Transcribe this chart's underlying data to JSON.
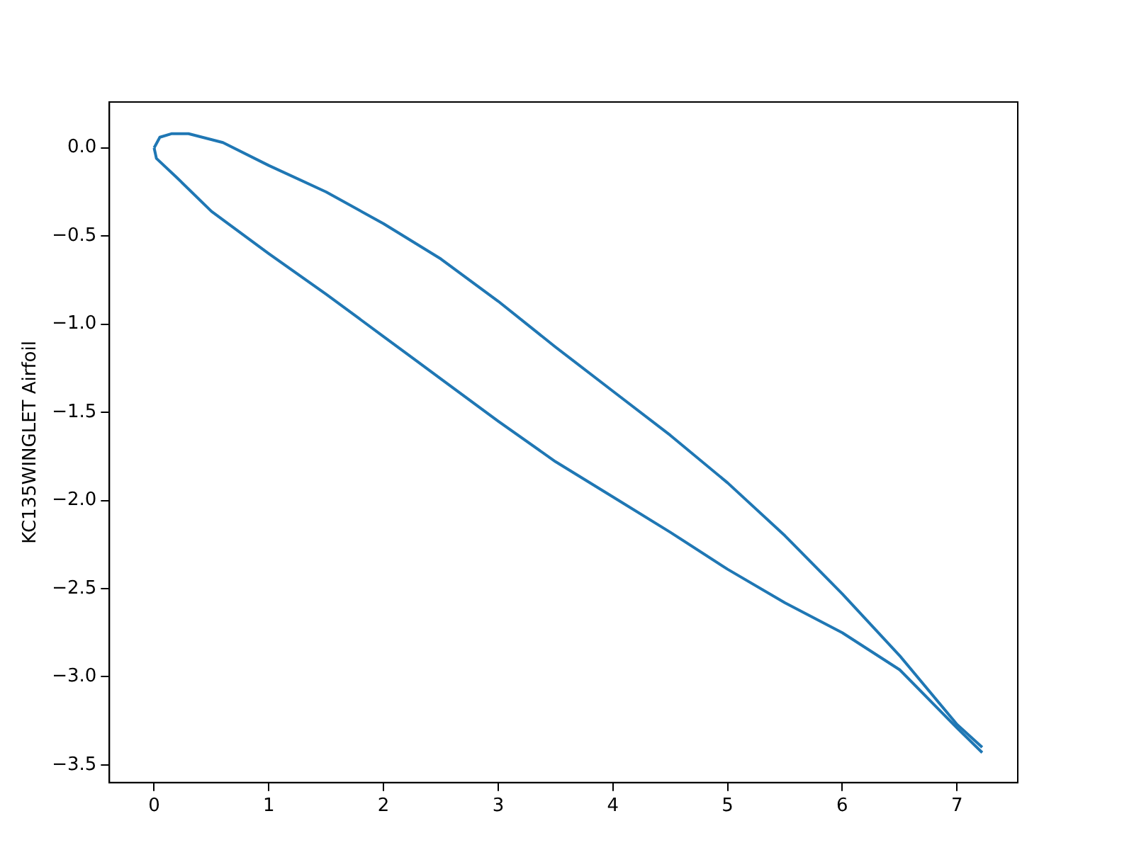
{
  "chart_data": {
    "type": "line",
    "ylabel": "KC135WINGLET Airfoil",
    "series": [
      {
        "color": "#1f77b4",
        "x": [
          0,
          0.05,
          0.15,
          0.3,
          0.6,
          1,
          1.5,
          2,
          2.5,
          3,
          3.5,
          4,
          4.5,
          5,
          5.5,
          6,
          6.5,
          7,
          7.22
        ],
        "values": [
          0,
          0.06,
          0.08,
          0.08,
          0.03,
          -0.1,
          -0.25,
          -0.43,
          -0.63,
          -0.87,
          -1.13,
          -1.38,
          -1.63,
          -1.9,
          -2.2,
          -2.53,
          -2.88,
          -3.27,
          -3.4
        ]
      },
      {
        "color": "#1f77b4",
        "x": [
          0,
          0.02,
          0.2,
          0.5,
          1,
          1.5,
          2,
          2.5,
          3,
          3.5,
          4,
          4.5,
          5,
          5.5,
          6,
          6.5,
          7,
          7.22
        ],
        "values": [
          0,
          -0.06,
          -0.17,
          -0.36,
          -0.6,
          -0.83,
          -1.07,
          -1.31,
          -1.55,
          -1.78,
          -1.98,
          -2.18,
          -2.39,
          -2.58,
          -2.75,
          -2.96,
          -3.29,
          -3.43
        ]
      }
    ],
    "xlim": [
      -0.39,
      7.53
    ],
    "ylim": [
      -3.6,
      0.26
    ],
    "xticks": [
      0,
      1,
      2,
      3,
      4,
      5,
      6,
      7
    ],
    "yticks": [
      {
        "value": 0,
        "label": "0.0"
      },
      {
        "value": -0.5,
        "label": "−0.5"
      },
      {
        "value": -1,
        "label": "−1.0"
      },
      {
        "value": -1.5,
        "label": "−1.5"
      },
      {
        "value": -2,
        "label": "−2.0"
      },
      {
        "value": -2.5,
        "label": "−2.5"
      },
      {
        "value": -3,
        "label": "−3.0"
      },
      {
        "value": -3.5,
        "label": "−3.5"
      }
    ],
    "grid": false,
    "legend": false,
    "marker": "none",
    "line_style": "solid"
  }
}
